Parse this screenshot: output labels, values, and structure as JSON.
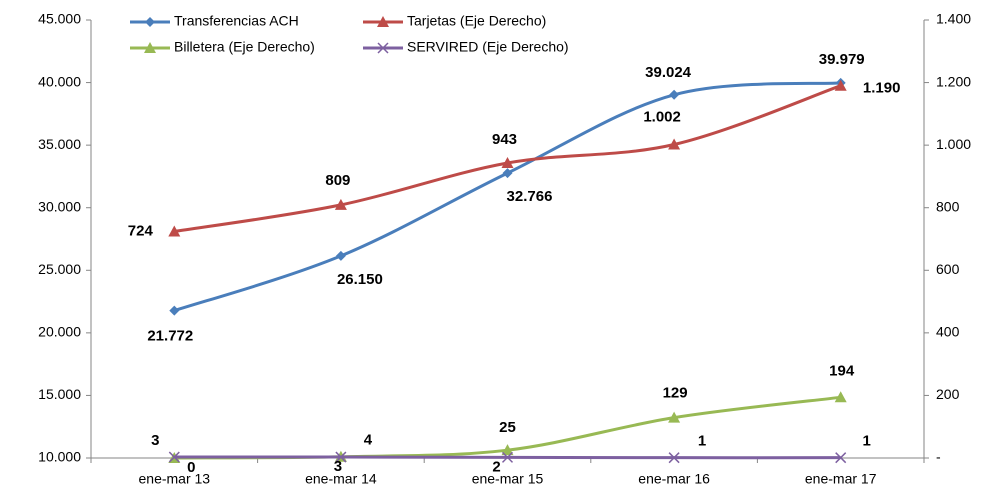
{
  "chart_data": {
    "type": "line",
    "categories": [
      "ene-mar 13",
      "ene-mar 14",
      "ene-mar 15",
      "ene-mar 16",
      "ene-mar 17"
    ],
    "series": [
      {
        "name": "Transferencias ACH",
        "color": "#4a7ebb",
        "marker": "diamond",
        "axis": "y",
        "values": [
          21772,
          26150,
          32766,
          39024,
          39979
        ],
        "value_labels": [
          "21.772",
          "26.150",
          "32.766",
          "39.024",
          "39.979"
        ]
      },
      {
        "name": "Tarjetas (Eje Derecho)",
        "color": "#be4b48",
        "marker": "triangle",
        "axis": "y2",
        "values": [
          724,
          809,
          943,
          1002,
          1190
        ],
        "value_labels": [
          "724",
          "809",
          "943",
          "1.002",
          "1.190"
        ]
      },
      {
        "name": "Billetera (Eje Derecho)",
        "color": "#98b954",
        "marker": "triangle",
        "axis": "y2",
        "values": [
          0,
          4,
          25,
          129,
          194
        ]
      },
      {
        "name": "SERVIRED (Eje Derecho)",
        "color": "#7d60a0",
        "marker": "x",
        "axis": "y2",
        "values": [
          3,
          3,
          2,
          1,
          1
        ]
      }
    ],
    "ylim": [
      10000,
      45000
    ],
    "yticks": [
      {
        "value": 10000,
        "label": "10.000"
      },
      {
        "value": 15000,
        "label": "15.000"
      },
      {
        "value": 20000,
        "label": "20.000"
      },
      {
        "value": 25000,
        "label": "25.000"
      },
      {
        "value": 30000,
        "label": "30.000"
      },
      {
        "value": 35000,
        "label": "35.000"
      },
      {
        "value": 40000,
        "label": "40.000"
      },
      {
        "value": 45000,
        "label": "45.000"
      }
    ],
    "y2lim": [
      0,
      1400
    ],
    "y2ticks": [
      {
        "value": 0,
        "label": "-"
      },
      200,
      400,
      600,
      800,
      {
        "value": 1000,
        "label": "1.000"
      },
      {
        "value": 1200,
        "label": "1.200"
      },
      {
        "value": 1400,
        "label": "1.400"
      }
    ],
    "grid": false,
    "legend": "top"
  }
}
